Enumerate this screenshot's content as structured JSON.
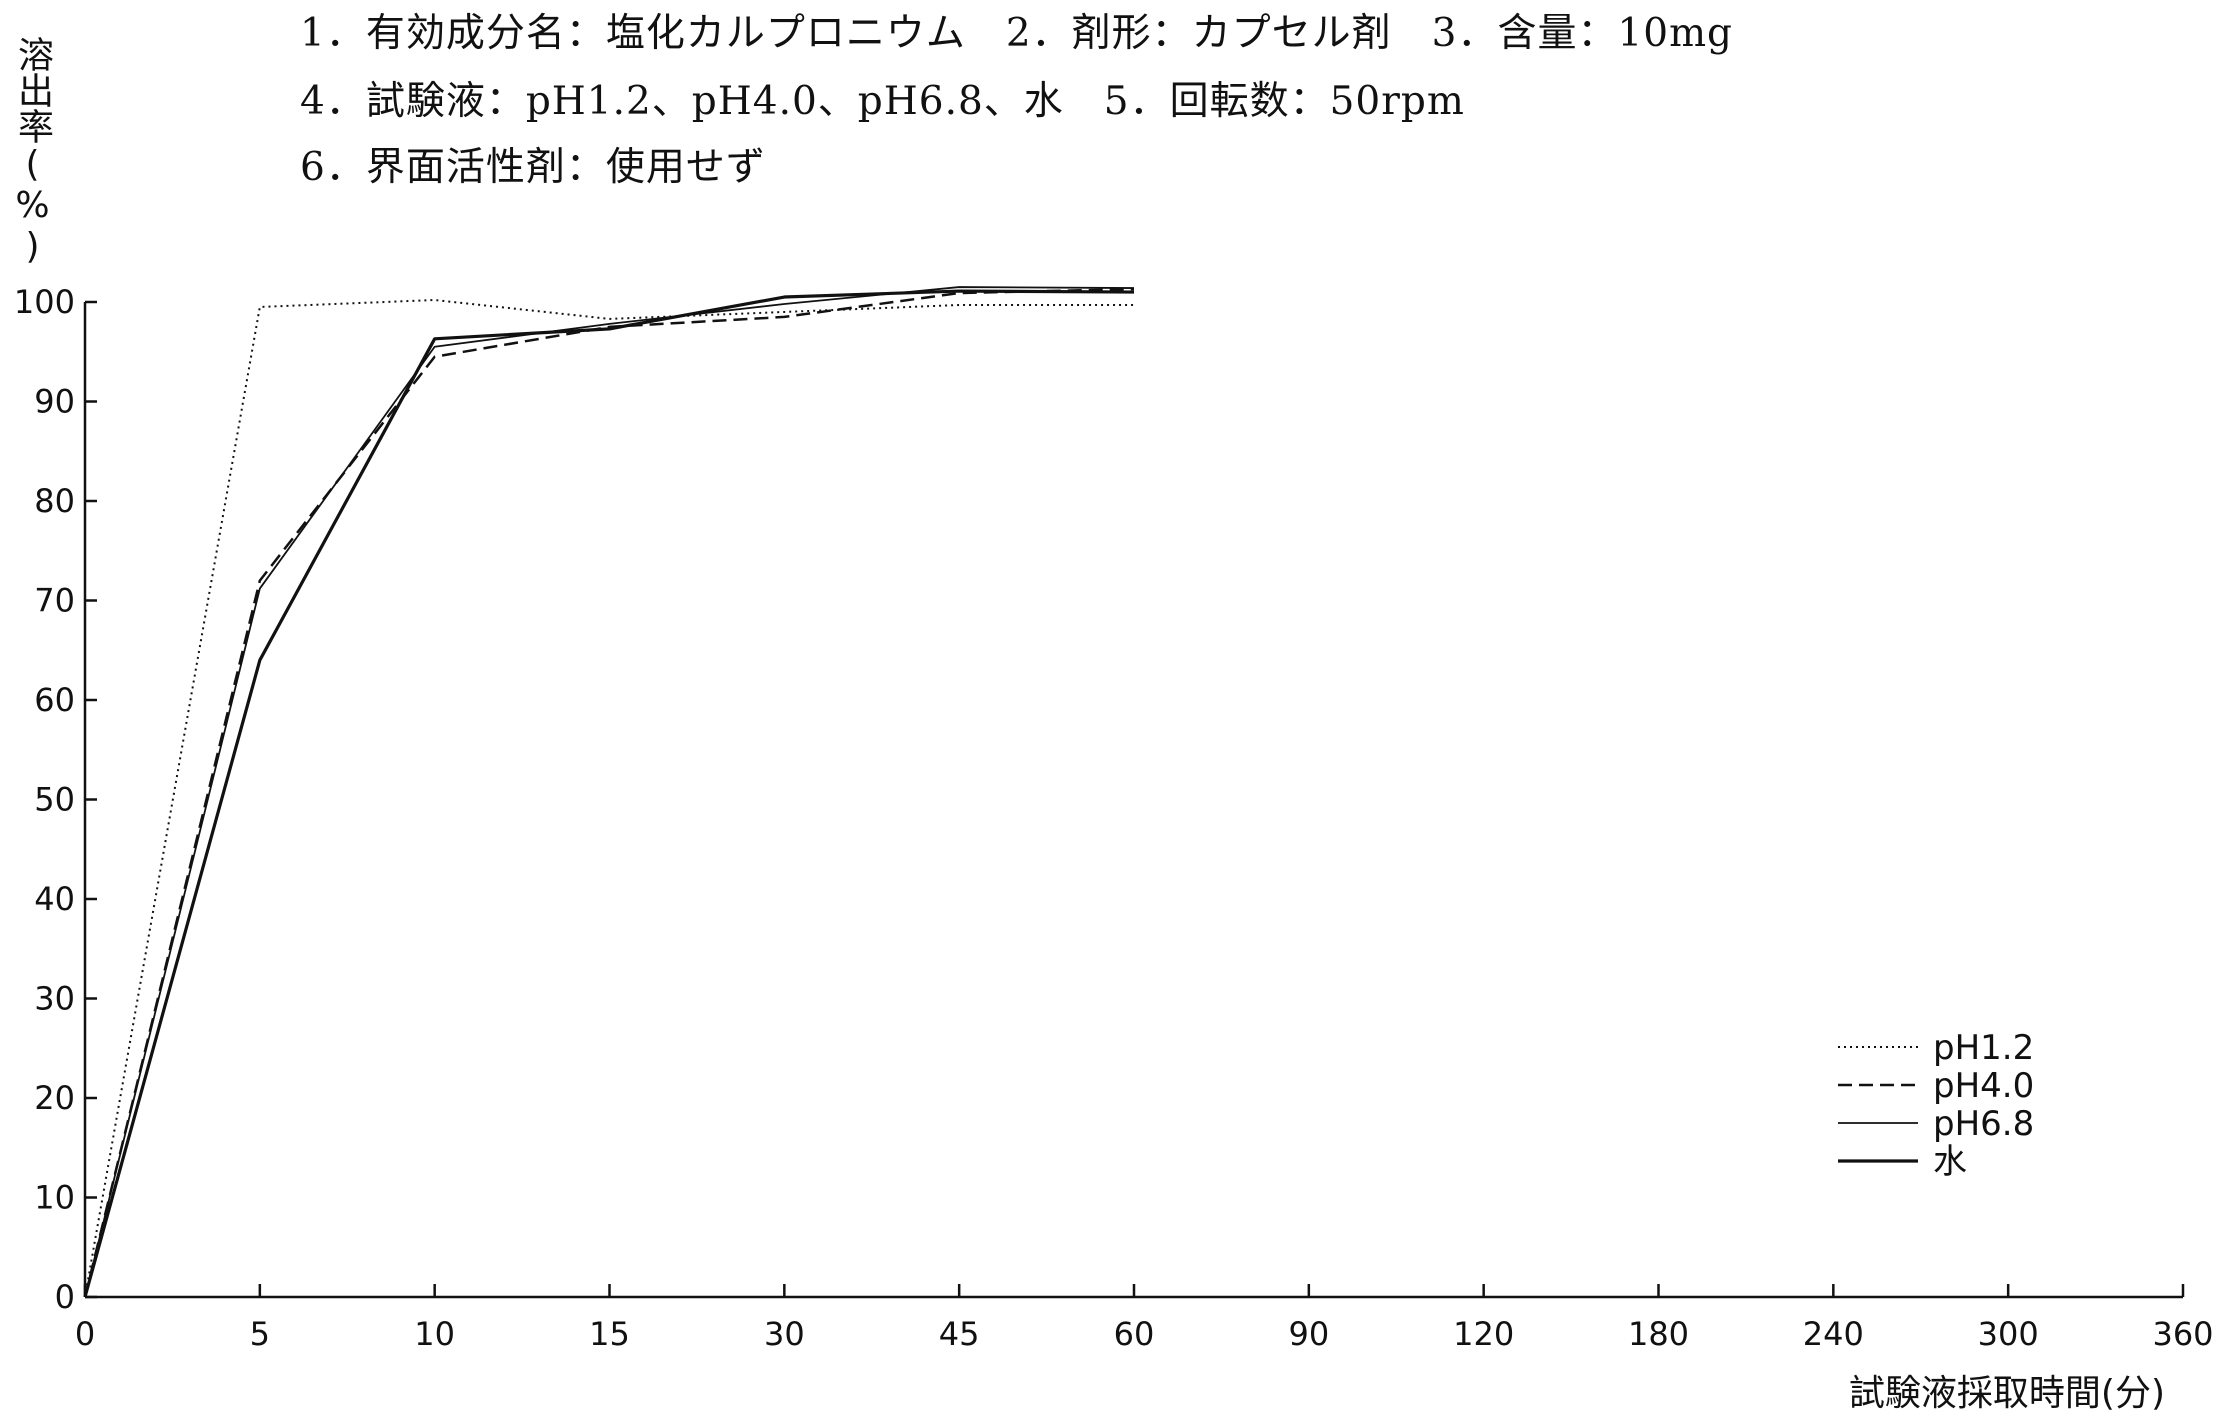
{
  "header": {
    "line1": "1．有効成分名：塩化カルプロニウム　2．剤形：カプセル剤　3．含量：10mg",
    "line2": "4．試験液：pH1.2、pH4.0、pH6.8、水　5．回転数：50rpm",
    "line3": "6．界面活性剤：使用せず"
  },
  "chart_data": {
    "type": "line",
    "title": "",
    "ylabel": "溶出率(%)",
    "xlabel": "試験液採取時間(分)",
    "categories": [
      "0",
      "5",
      "10",
      "15",
      "30",
      "45",
      "60",
      "90",
      "120",
      "180",
      "240",
      "300",
      "360"
    ],
    "ylim": [
      0,
      100
    ],
    "yticks": [
      "0",
      "10",
      "20",
      "30",
      "40",
      "50",
      "60",
      "70",
      "80",
      "90",
      "100"
    ],
    "grid": false,
    "legend_position": "bottom-right",
    "series": [
      {
        "name": "pH1.2",
        "style": "dotted",
        "x": [
          0,
          5,
          10,
          15,
          30,
          45,
          60
        ],
        "values": [
          0,
          99.5,
          100.2,
          98.3,
          99,
          99.7,
          99.7
        ]
      },
      {
        "name": "pH4.0",
        "style": "dashed",
        "x": [
          0,
          5,
          10,
          15,
          30,
          45,
          60
        ],
        "values": [
          0,
          72,
          94.5,
          97.5,
          98.5,
          100.9,
          101.3
        ]
      },
      {
        "name": "pH6.8",
        "style": "thin",
        "x": [
          0,
          5,
          10,
          15,
          30,
          45,
          60
        ],
        "values": [
          0,
          71.2,
          95.5,
          97.8,
          99.8,
          101.5,
          101.4
        ]
      },
      {
        "name": "水",
        "style": "solid",
        "x": [
          0,
          5,
          10,
          15,
          30,
          45,
          60
        ],
        "values": [
          0,
          64,
          96.3,
          97.3,
          100.5,
          101.1,
          101
        ]
      }
    ]
  }
}
